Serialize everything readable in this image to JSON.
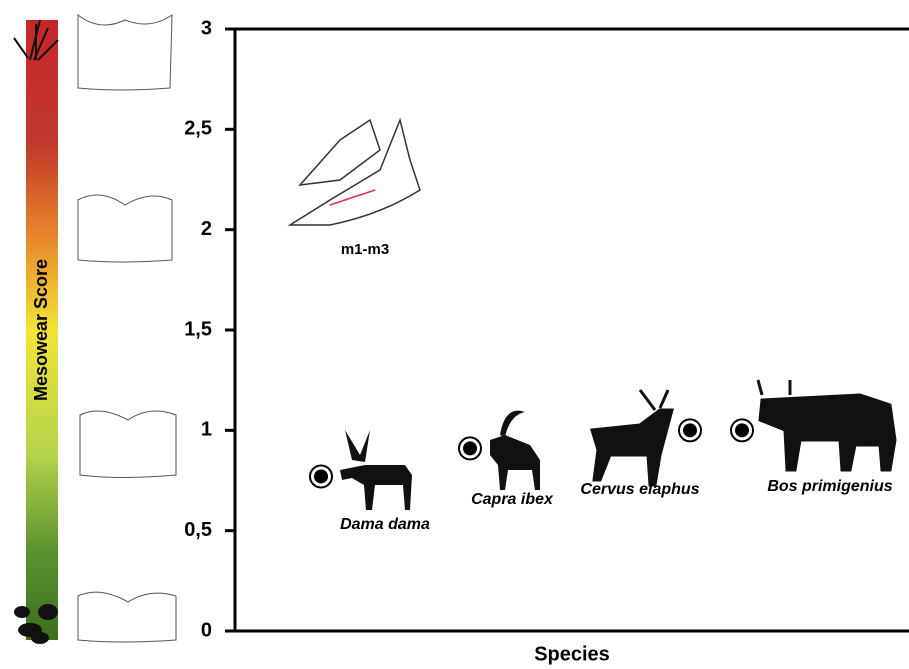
{
  "chart_data": {
    "type": "scatter",
    "y_label": "Mesowear Score",
    "x_label": "Species",
    "annotation": "m1-m3",
    "categories": [
      "Dama dama",
      "Capra ibex",
      "Cervus elaphus",
      "Bos primigenius"
    ],
    "values": [
      0.77,
      0.91,
      1.0,
      1.0
    ],
    "ylim": [
      0,
      3
    ],
    "yticks": [
      0,
      {
        "value": 0.5,
        "label": "0,5"
      },
      1,
      {
        "value": 1.5,
        "label": "1,5"
      },
      2,
      {
        "value": 2.5,
        "label": "2,5"
      },
      3
    ]
  }
}
